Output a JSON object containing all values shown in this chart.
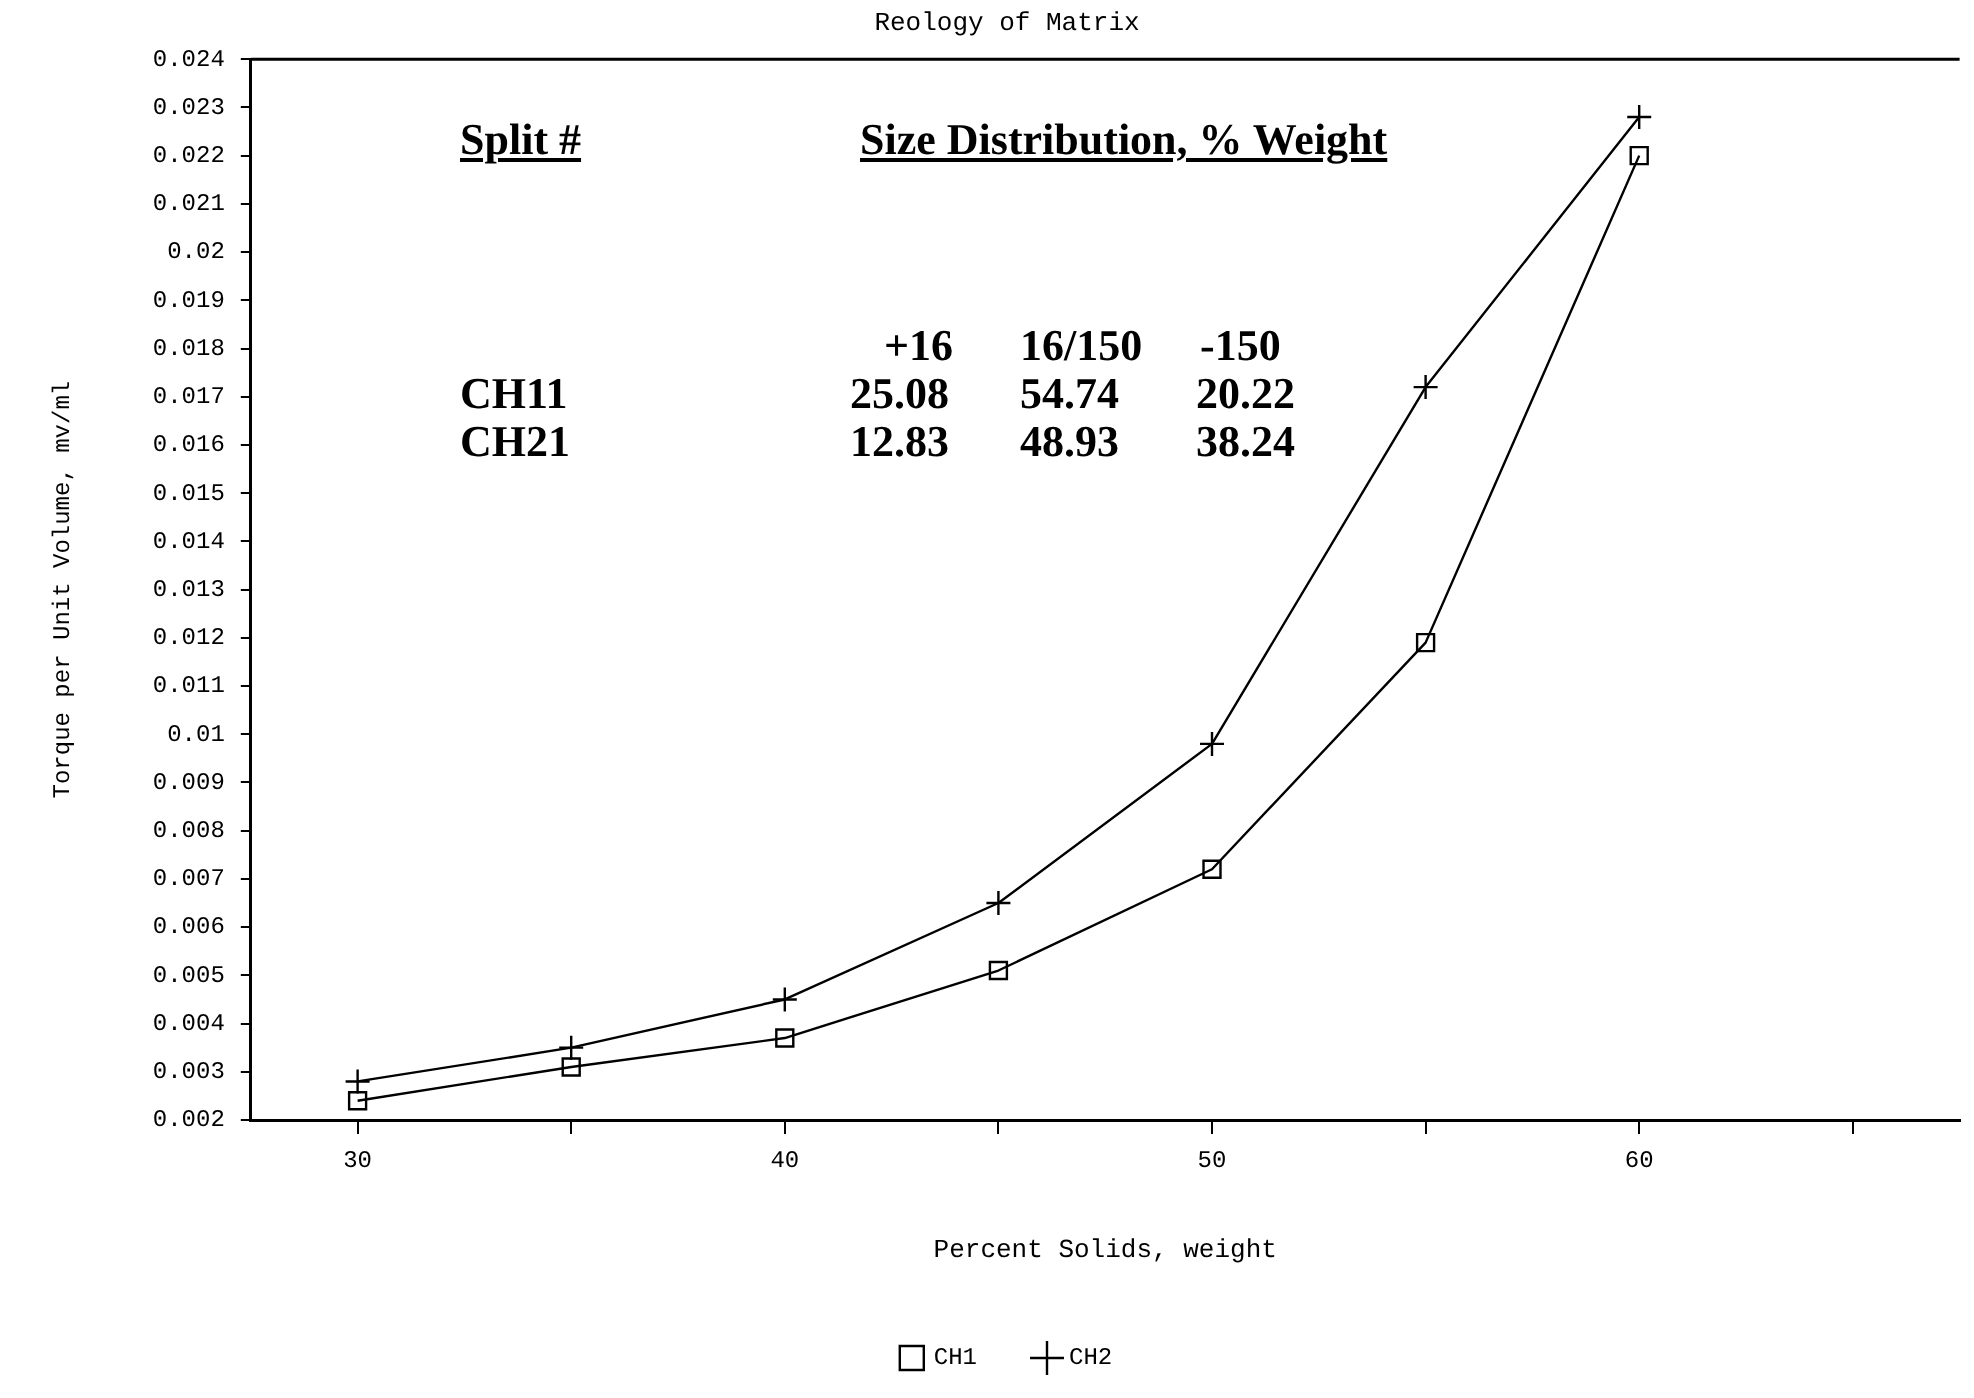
{
  "chart_data": {
    "type": "line",
    "title": "Reology of Matrix",
    "xlabel": "Percent Solids, weight",
    "ylabel": "Torque per Unit Volume, mv/ml",
    "x": [
      30,
      35,
      40,
      45,
      50,
      55,
      60
    ],
    "series": [
      {
        "name": "CH1",
        "color": "#000000",
        "marker": "square",
        "values": [
          0.0024,
          0.0031,
          0.0037,
          0.0051,
          0.0072,
          0.0119,
          0.022
        ]
      },
      {
        "name": "CH2",
        "color": "#000000",
        "marker": "cross",
        "values": [
          0.0028,
          0.0035,
          0.0045,
          0.0065,
          0.0098,
          0.0172,
          0.0228
        ]
      }
    ],
    "xlim": [
      27.5,
      67.5
    ],
    "xticks": [
      30,
      {
        "value": 35,
        "label": null
      },
      40,
      {
        "value": 45,
        "label": null
      },
      50,
      {
        "value": 55,
        "label": null
      },
      60,
      {
        "value": 65,
        "label": null
      }
    ],
    "ylim": [
      0.002,
      0.024
    ],
    "yticks": [
      0.002,
      0.003,
      0.004,
      0.005,
      0.006,
      0.007,
      0.008,
      0.009,
      0.01,
      0.011,
      0.012,
      0.013,
      0.014,
      0.015,
      0.016,
      0.017,
      0.018,
      0.019,
      0.02,
      0.021,
      0.022,
      0.023,
      0.024
    ],
    "annotations": [
      "Split #",
      "Size Distribution, % Weight",
      "+16",
      "16/150",
      "-150",
      "CH11",
      "25.08",
      "54.74",
      "20.22",
      "CH21",
      "12.83",
      "48.93",
      "38.24"
    ],
    "legend": "bottom",
    "grid": false,
    "line_style": "solid"
  }
}
